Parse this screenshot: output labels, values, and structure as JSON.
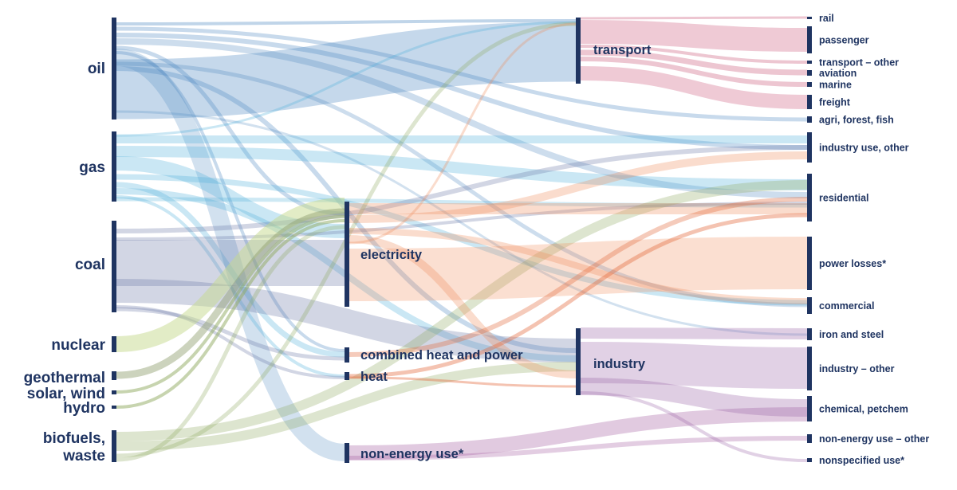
{
  "colors": {
    "node": "#1f3461",
    "oil": "#4a86c0",
    "gas": "#4fb0d9",
    "coal": "#6a77a5",
    "nuclear": "#c6d98e",
    "geothermal": "#8e9d6c",
    "solar_wind": "#8faa5f",
    "hydro": "#8faa5f",
    "biofuels": "#8faa5f",
    "electricity": "#f08c5a",
    "combined_heat_power": "#e36a3c",
    "heat": "#e36a3c",
    "non_energy_use": "#a15aa0",
    "transport": "#cc5b7b",
    "industry": "#9a66a8"
  },
  "sources": [
    {
      "key": "oil",
      "label": [
        "oil"
      ]
    },
    {
      "key": "gas",
      "label": [
        "gas"
      ]
    },
    {
      "key": "coal",
      "label": [
        "coal"
      ]
    },
    {
      "key": "nuclear",
      "label": [
        "nuclear"
      ]
    },
    {
      "key": "geothermal",
      "label": [
        "geothermal"
      ]
    },
    {
      "key": "solar_wind",
      "label": [
        "solar, wind"
      ]
    },
    {
      "key": "hydro",
      "label": [
        "hydro"
      ]
    },
    {
      "key": "biofuels",
      "label": [
        "biofuels,",
        "waste"
      ]
    }
  ],
  "intermediates": [
    {
      "key": "electricity",
      "label": "electricity"
    },
    {
      "key": "combined_heat_power",
      "label": "combined heat and power"
    },
    {
      "key": "heat",
      "label": "heat"
    },
    {
      "key": "non_energy_use",
      "label": "non-energy use*"
    }
  ],
  "sectors": [
    {
      "key": "transport",
      "label": "transport"
    },
    {
      "key": "industry",
      "label": "industry"
    }
  ],
  "end_uses": [
    {
      "key": "rail",
      "label": "rail"
    },
    {
      "key": "passenger",
      "label": "passenger"
    },
    {
      "key": "transport_other",
      "label": "transport – other"
    },
    {
      "key": "aviation",
      "label": "aviation"
    },
    {
      "key": "marine",
      "label": "marine"
    },
    {
      "key": "freight",
      "label": "freight"
    },
    {
      "key": "agri",
      "label": "agri, forest, fish"
    },
    {
      "key": "industry_use_other",
      "label": "industry use, other"
    },
    {
      "key": "residential",
      "label": "residential"
    },
    {
      "key": "power_losses",
      "label": "power losses*"
    },
    {
      "key": "commercial",
      "label": "commercial"
    },
    {
      "key": "iron_steel",
      "label": "iron and steel"
    },
    {
      "key": "industry_other",
      "label": "industry – other"
    },
    {
      "key": "chemical",
      "label": "chemical, petchem"
    },
    {
      "key": "neu_other",
      "label": "non-energy use – other"
    },
    {
      "key": "nonspecified",
      "label": "nonspecified use*"
    }
  ]
}
